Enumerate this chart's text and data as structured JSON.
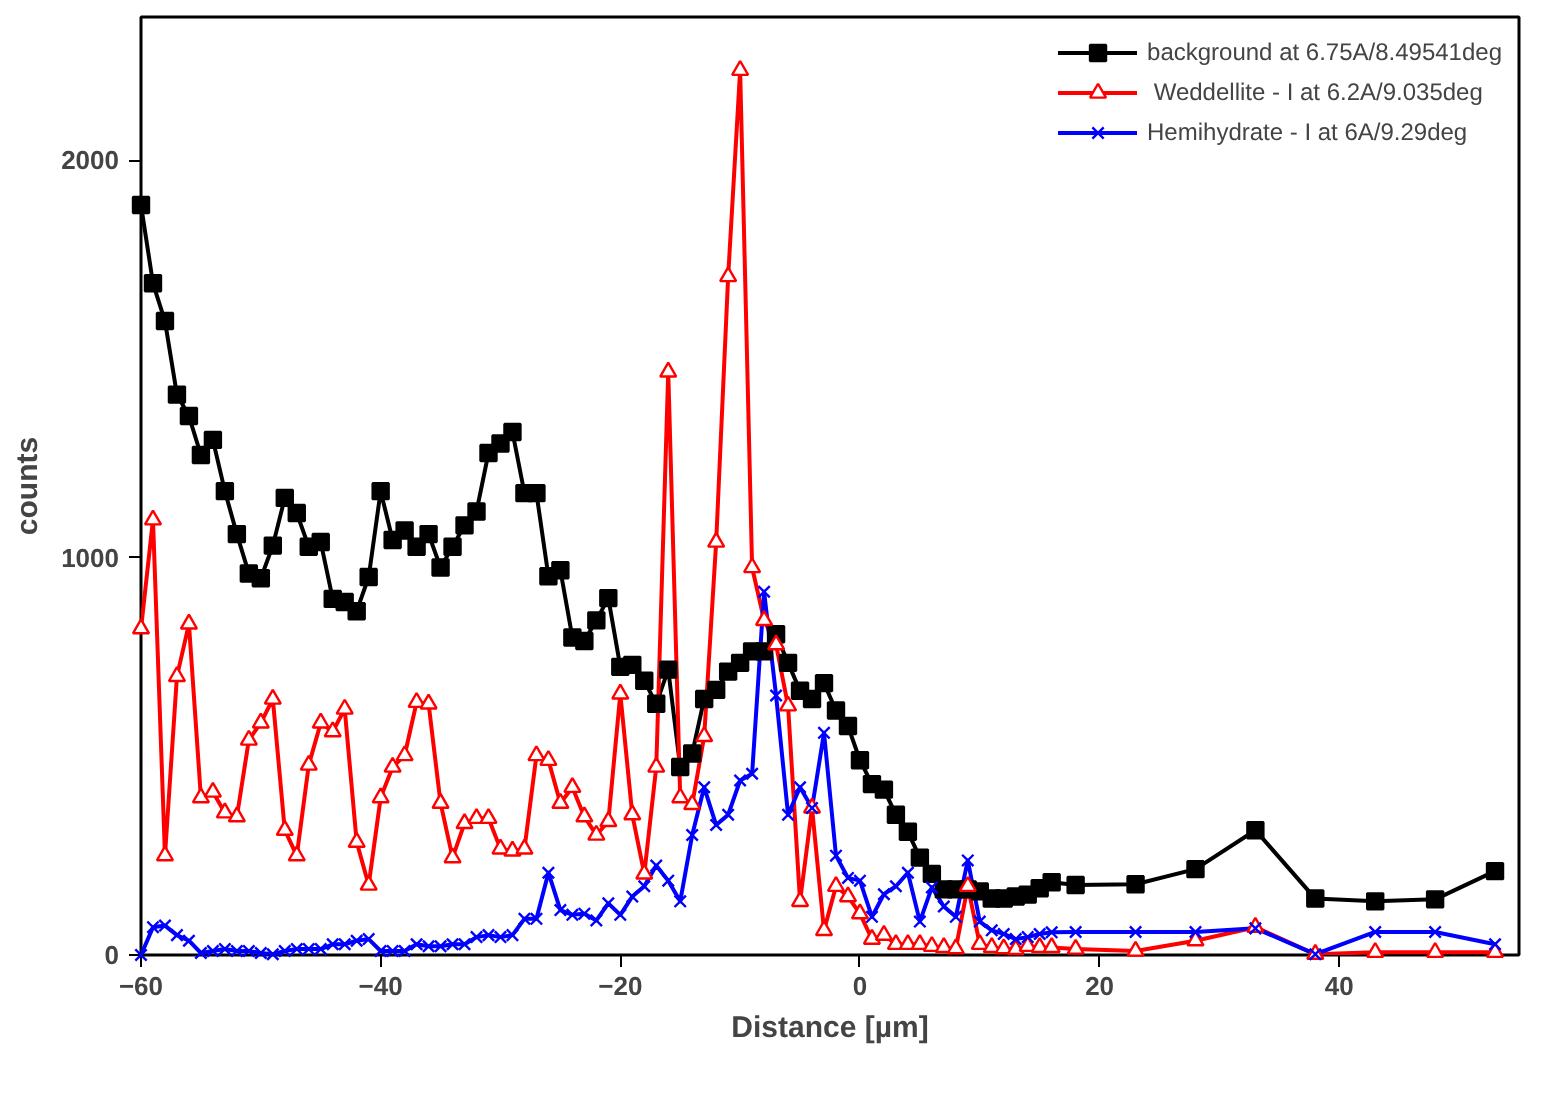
{
  "chart_data": {
    "type": "line",
    "xlabel": "Distance [µm]",
    "ylabel": "counts",
    "x": [
      -60,
      -59,
      -58,
      -57,
      -56,
      -55,
      -54,
      -53,
      -52,
      -51,
      -50,
      -49,
      -48,
      -47,
      -46,
      -45,
      -44,
      -43,
      -42,
      -41,
      -40,
      -39,
      -38,
      -37,
      -36,
      -35,
      -34,
      -33,
      -32,
      -31,
      -30,
      -29,
      -28,
      -27,
      -26,
      -25,
      -24,
      -23,
      -22,
      -21,
      -20,
      -19,
      -18,
      -17,
      -16,
      -15,
      -14,
      -13,
      -12,
      -11,
      -10,
      -9,
      -8,
      -7,
      -6,
      -5,
      -4,
      -3,
      -2,
      -1,
      0,
      1,
      2,
      3,
      4,
      5,
      6,
      7,
      8,
      9,
      10,
      11,
      12,
      13,
      14,
      15,
      16,
      18,
      23,
      28,
      33,
      38,
      43,
      48,
      53
    ],
    "series": [
      {
        "name": "background at 6.75A/8.49541deg",
        "color": "#000000",
        "marker": "square",
        "values": [
          1887,
          1690,
          1595,
          1410,
          1356,
          1258,
          1296,
          1167,
          1059,
          960,
          948,
          1030,
          1150,
          1112,
          1027,
          1039,
          896,
          888,
          865,
          951,
          1167,
          1044,
          1068,
          1027,
          1059,
          975,
          1027,
          1081,
          1116,
          1263,
          1287,
          1316,
          1162,
          1162,
          953,
          968,
          799,
          790,
          842,
          898,
          725,
          730,
          690,
          632,
          718,
          473,
          507,
          644,
          667,
          713,
          735,
          764,
          764,
          807,
          735,
          665,
          644,
          684,
          615,
          576,
          490,
          430,
          416,
          353,
          310,
          245,
          204,
          165,
          165,
          165,
          160,
          142,
          142,
          147,
          152,
          168,
          183,
          176,
          178,
          216,
          314,
          142,
          135,
          140,
          211
        ]
      },
      {
        "name": " Weddellite - I at 6.2A/9.035deg",
        "color": "#ff0000",
        "marker": "triangle",
        "values": [
          821,
          1095,
          250,
          701,
          833,
          396,
          410,
          358,
          348,
          541,
          584,
          644,
          314,
          250,
          478,
          584,
          562,
          619,
          284,
          176,
          396,
          473,
          502,
          636,
          632,
          382,
          245,
          331,
          344,
          344,
          267,
          262,
          267,
          502,
          490,
          382,
          422,
          348,
          302,
          336,
          657,
          353,
          204,
          473,
          1467,
          396,
          379,
          550,
          1039,
          1707,
          2226,
          975,
          842,
          781,
          627,
          135,
          370,
          62,
          173,
          147,
          104,
          40,
          50,
          27,
          27,
          27,
          22,
          19,
          16,
          173,
          27,
          19,
          16,
          14,
          22,
          19,
          19,
          15,
          10,
          36,
          70,
          2,
          7,
          7,
          7
        ]
      },
      {
        "name": "Hemihydrate - I at 6A/9.29deg",
        "color": "#0000ff",
        "marker": "cross",
        "values": [
          0,
          70,
          74,
          50,
          36,
          5,
          10,
          15,
          10,
          10,
          5,
          2,
          10,
          15,
          15,
          15,
          27,
          27,
          36,
          40,
          10,
          10,
          10,
          27,
          22,
          22,
          27,
          27,
          45,
          50,
          45,
          50,
          91,
          91,
          207,
          113,
          101,
          104,
          87,
          130,
          101,
          147,
          173,
          225,
          187,
          135,
          302,
          422,
          327,
          353,
          439,
          456,
          914,
          653,
          353,
          422,
          370,
          559,
          250,
          194,
          187,
          96,
          153,
          173,
          207,
          84,
          170,
          122,
          96,
          238,
          84,
          62,
          53,
          40,
          45,
          53,
          57,
          58,
          58,
          58,
          67,
          2,
          58,
          58,
          27
        ]
      }
    ],
    "xlim": [
      -60,
      55
    ],
    "ylim": [
      0,
      2360
    ],
    "xticks": [
      -60,
      -40,
      -20,
      0,
      20,
      40
    ],
    "yticks": [
      0,
      1000,
      2000
    ],
    "grid": false,
    "legend": "top right",
    "line_style": "solid"
  }
}
